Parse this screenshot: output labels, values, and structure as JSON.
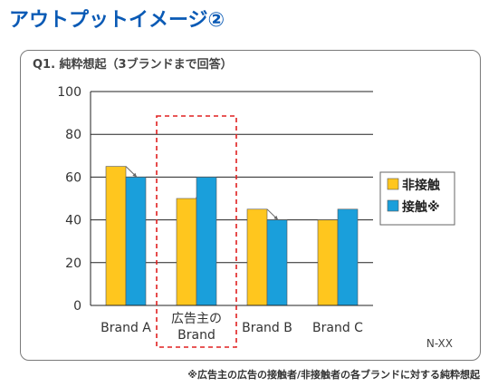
{
  "page": {
    "title": "アウトプットイメージ②",
    "question": "Q1. 純粋想起（3ブランドまで回答）",
    "footnote": "※広告主の広告の接触者/非接触者の各ブランドに対する純粋想起",
    "corner_label": "N-XX"
  },
  "colors": {
    "title": "#0a5ab5",
    "series_non_contact": "#ffc61e",
    "series_contact": "#1a9fdb",
    "highlight_box": "#e02020",
    "highlight_arrow": "#e02020"
  },
  "chart_data": {
    "type": "bar",
    "categories": [
      "Brand A",
      "広告主の\nBrand",
      "Brand B",
      "Brand C"
    ],
    "series": [
      {
        "name": "非接触",
        "values": [
          65,
          50,
          45,
          40
        ]
      },
      {
        "name": "接触※",
        "values": [
          60,
          60,
          40,
          45
        ]
      }
    ],
    "ylim": [
      0,
      100
    ],
    "yticks": [
      0,
      20,
      40,
      60,
      80,
      100
    ],
    "grid": true,
    "legend_position": "right",
    "highlighted_category": 1
  }
}
